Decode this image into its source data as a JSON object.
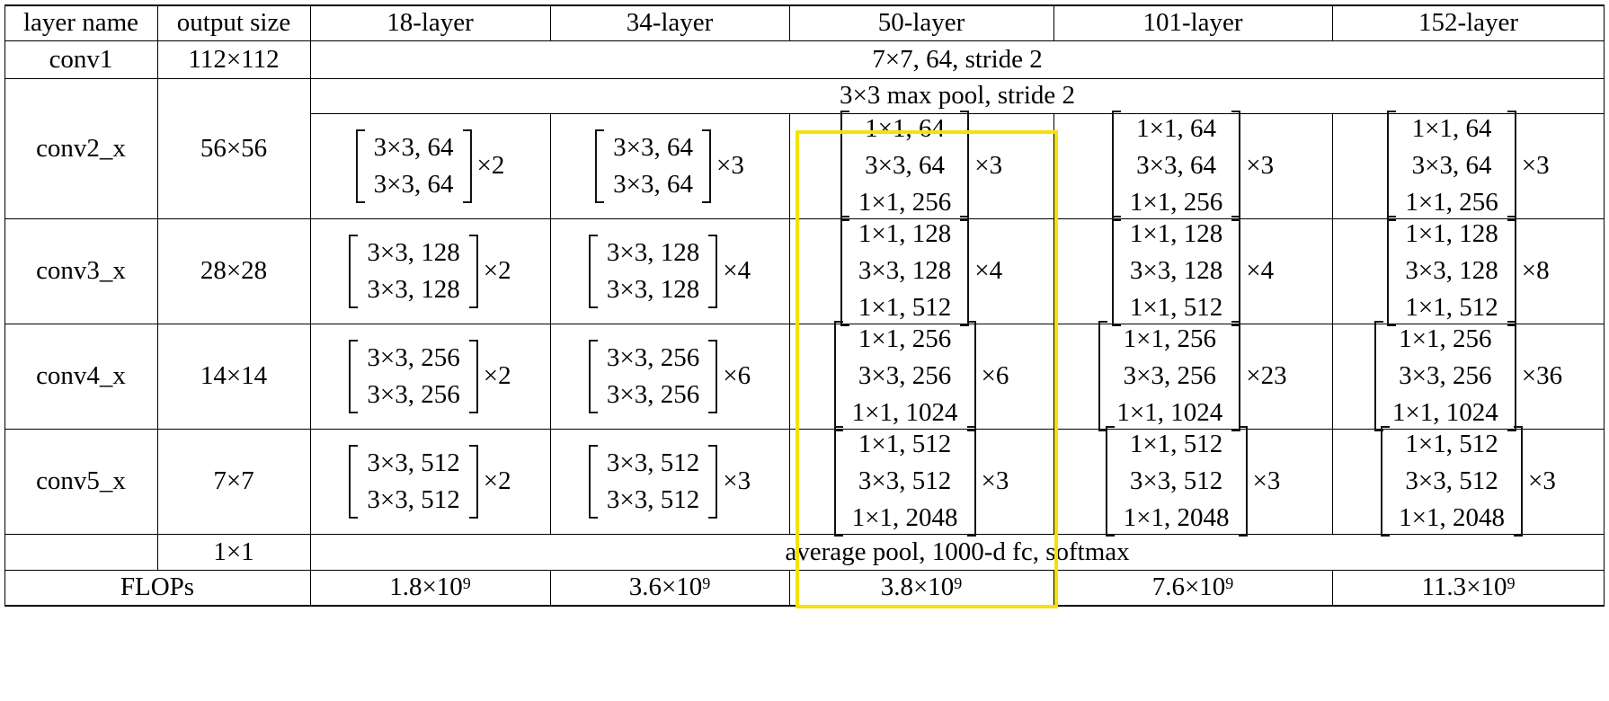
{
  "table": {
    "headers": [
      "layer name",
      "output size",
      "18-layer",
      "34-layer",
      "50-layer",
      "101-layer",
      "152-layer"
    ],
    "conv1": {
      "name": "conv1",
      "output": "112×112",
      "spec": "7×7, 64, stride 2"
    },
    "conv2": {
      "name": "conv2_x",
      "output": "56×56",
      "pool": "3×3 max pool, stride 2",
      "blocks": [
        {
          "rows": [
            "3×3, 64",
            "3×3, 64"
          ],
          "mult": "×2"
        },
        {
          "rows": [
            "3×3, 64",
            "3×3, 64"
          ],
          "mult": "×3"
        },
        {
          "rows": [
            "1×1, 64",
            "3×3, 64",
            "1×1, 256"
          ],
          "mult": "×3"
        },
        {
          "rows": [
            "1×1, 64",
            "3×3, 64",
            "1×1, 256"
          ],
          "mult": "×3"
        },
        {
          "rows": [
            "1×1, 64",
            "3×3, 64",
            "1×1, 256"
          ],
          "mult": "×3"
        }
      ]
    },
    "conv3": {
      "name": "conv3_x",
      "output": "28×28",
      "blocks": [
        {
          "rows": [
            "3×3, 128",
            "3×3, 128"
          ],
          "mult": "×2"
        },
        {
          "rows": [
            "3×3, 128",
            "3×3, 128"
          ],
          "mult": "×4"
        },
        {
          "rows": [
            "1×1, 128",
            "3×3, 128",
            "1×1, 512"
          ],
          "mult": "×4"
        },
        {
          "rows": [
            "1×1, 128",
            "3×3, 128",
            "1×1, 512"
          ],
          "mult": "×4"
        },
        {
          "rows": [
            "1×1, 128",
            "3×3, 128",
            "1×1, 512"
          ],
          "mult": "×8"
        }
      ]
    },
    "conv4": {
      "name": "conv4_x",
      "output": "14×14",
      "blocks": [
        {
          "rows": [
            "3×3, 256",
            "3×3, 256"
          ],
          "mult": "×2"
        },
        {
          "rows": [
            "3×3, 256",
            "3×3, 256"
          ],
          "mult": "×6"
        },
        {
          "rows": [
            "1×1, 256",
            "3×3, 256",
            "1×1, 1024"
          ],
          "mult": "×6"
        },
        {
          "rows": [
            "1×1, 256",
            "3×3, 256",
            "1×1, 1024"
          ],
          "mult": "×23"
        },
        {
          "rows": [
            "1×1, 256",
            "3×3, 256",
            "1×1, 1024"
          ],
          "mult": "×36"
        }
      ]
    },
    "conv5": {
      "name": "conv5_x",
      "output": "7×7",
      "blocks": [
        {
          "rows": [
            "3×3, 512",
            "3×3, 512"
          ],
          "mult": "×2"
        },
        {
          "rows": [
            "3×3, 512",
            "3×3, 512"
          ],
          "mult": "×3"
        },
        {
          "rows": [
            "1×1, 512",
            "3×3, 512",
            "1×1, 2048"
          ],
          "mult": "×3"
        },
        {
          "rows": [
            "1×1, 512",
            "3×3, 512",
            "1×1, 2048"
          ],
          "mult": "×3"
        },
        {
          "rows": [
            "1×1, 512",
            "3×3, 512",
            "1×1, 2048"
          ],
          "mult": "×3"
        }
      ]
    },
    "final": {
      "output": "1×1",
      "spec": "average pool, 1000-d fc, softmax"
    },
    "flops": {
      "label": "FLOPs",
      "values": [
        {
          "base": "1.8×10",
          "exp": "9"
        },
        {
          "base": "3.6×10",
          "exp": "9"
        },
        {
          "base": "3.8×10",
          "exp": "9"
        },
        {
          "base": "7.6×10",
          "exp": "9"
        },
        {
          "base": "11.3×10",
          "exp": "9"
        }
      ]
    },
    "highlight_color": "#f5e10a"
  }
}
